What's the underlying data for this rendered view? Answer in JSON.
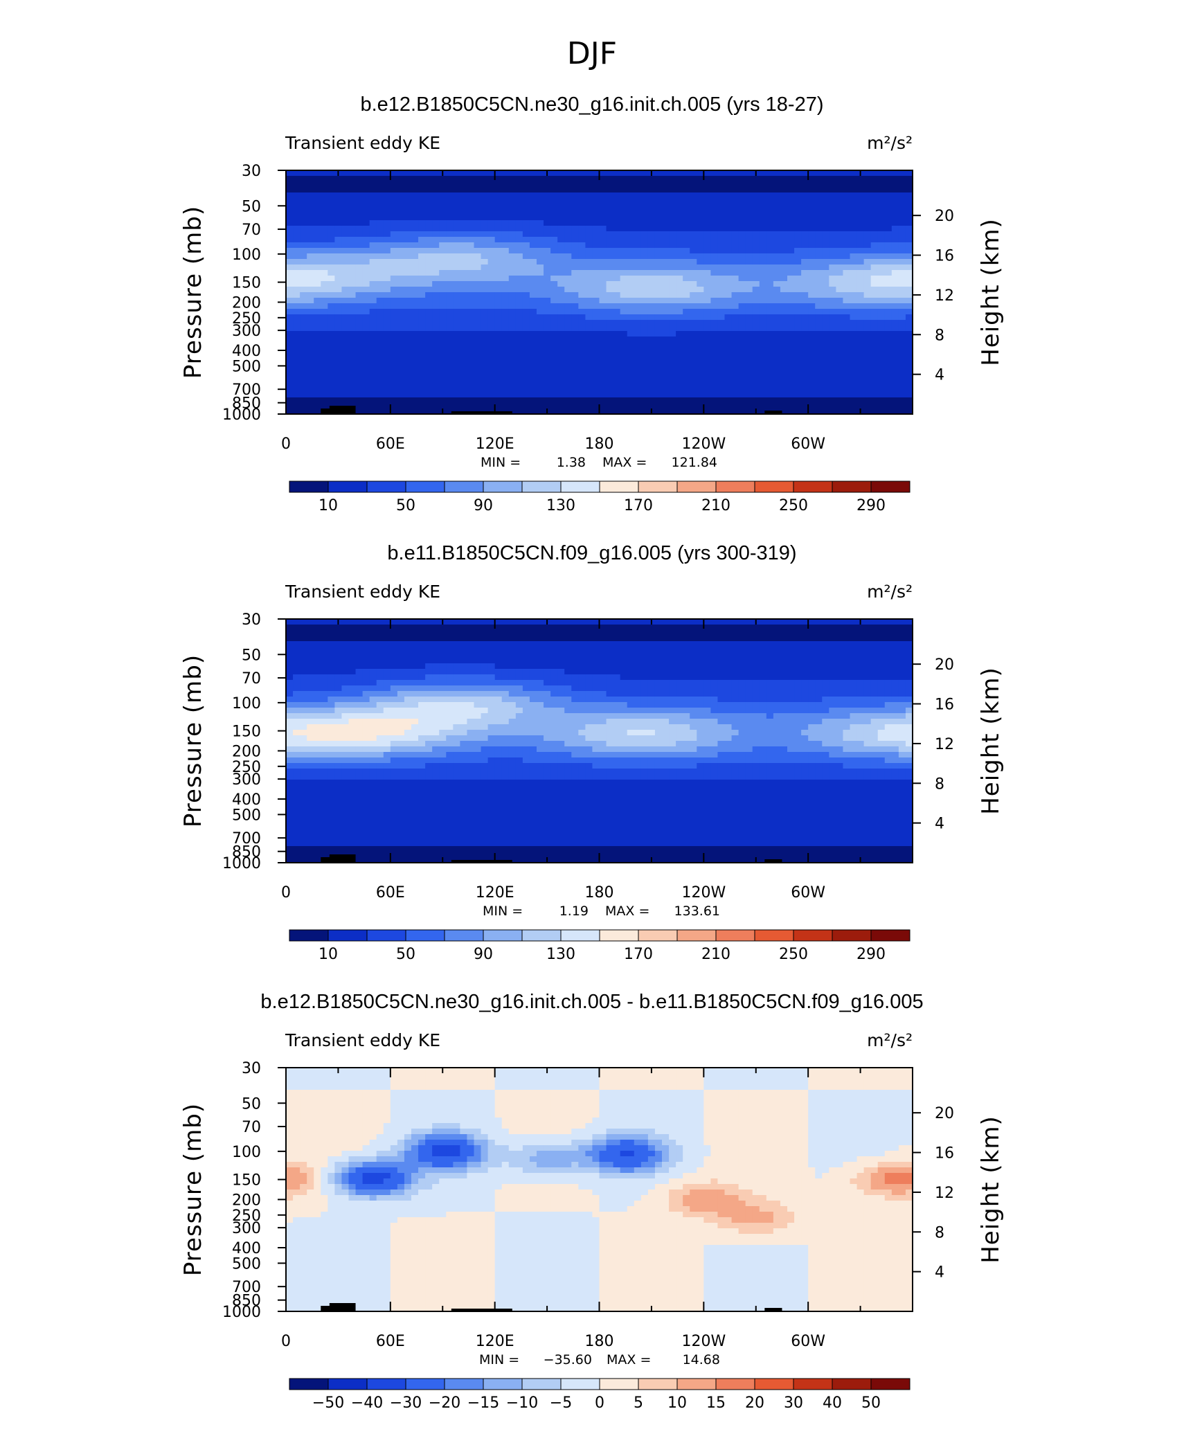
{
  "figure": {
    "title": "DJF"
  },
  "colors": {
    "abs_scale": [
      "#04147a",
      "#0c2ec6",
      "#1d48e0",
      "#3366ee",
      "#5a8af0",
      "#8ab0f2",
      "#b2cdf4",
      "#d6e6fa",
      "#fbeadb",
      "#f9ccb3",
      "#f4a787",
      "#ee7e5c",
      "#e65a33",
      "#c43317",
      "#9c1c0c",
      "#7a0a08"
    ],
    "diff_scale": [
      "#04147a",
      "#0c2ec6",
      "#1d48e0",
      "#3366ee",
      "#5a8af0",
      "#8ab0f2",
      "#b2cdf4",
      "#d6e6fa",
      "#fbeadb",
      "#f9ccb3",
      "#f4a787",
      "#ee7e5c",
      "#e65a33",
      "#c43317",
      "#9c1c0c",
      "#7a0a08"
    ],
    "topography": "#000000"
  },
  "chart_data": [
    {
      "type": "heatmap",
      "title": "b.e12.B1850C5CN.ne30_g16.init.ch.005 (yrs 18-27)",
      "left_label": "Transient eddy KE",
      "units": "m²/s²",
      "xlabel": "",
      "ylabel": "Pressure  (mb)",
      "ylabel_right": "Height  (km)",
      "x_ticks": [
        "0",
        "60E",
        "120E",
        "180",
        "120W",
        "60W"
      ],
      "y_ticks": [
        "30",
        "50",
        "70",
        "100",
        "150",
        "200",
        "250",
        "300",
        "400",
        "500",
        "700",
        "850",
        "1000"
      ],
      "y_right_ticks": [
        "20",
        "16",
        "12",
        "8",
        "4"
      ],
      "min_label": "MIN =",
      "min_value": "1.38",
      "max_label": "MAX =",
      "max_value": "121.84",
      "colorbar_labels": [
        "10",
        "50",
        "90",
        "130",
        "170",
        "210",
        "250",
        "290"
      ],
      "colorbar_levels": [
        10,
        30,
        50,
        70,
        90,
        110,
        130,
        150,
        170,
        190,
        210,
        230,
        250,
        270,
        290
      ],
      "field_max": 121.84,
      "jets": [
        {
          "lon": 20,
          "logp": 2.13,
          "peak": 105
        },
        {
          "lon": 100,
          "logp": 2.02,
          "peak": 118
        },
        {
          "lon": 210,
          "logp": 2.22,
          "peak": 122
        },
        {
          "lon": 335,
          "logp": 2.2,
          "peak": 105
        }
      ]
    },
    {
      "type": "heatmap",
      "title": "b.e11.B1850C5CN.f09_g16.005 (yrs 300-319)",
      "left_label": "Transient eddy KE",
      "units": "m²/s²",
      "xlabel": "",
      "ylabel": "Pressure  (mb)",
      "ylabel_right": "Height  (km)",
      "x_ticks": [
        "0",
        "60E",
        "120E",
        "180",
        "120W",
        "60W"
      ],
      "y_ticks": [
        "30",
        "50",
        "70",
        "100",
        "150",
        "200",
        "250",
        "300",
        "400",
        "500",
        "700",
        "850",
        "1000"
      ],
      "y_right_ticks": [
        "20",
        "16",
        "12",
        "8",
        "4"
      ],
      "min_label": "MIN =",
      "min_value": "1.19",
      "max_label": "MAX =",
      "max_value": "133.61",
      "colorbar_labels": [
        "10",
        "50",
        "90",
        "130",
        "170",
        "210",
        "250",
        "290"
      ],
      "colorbar_levels": [
        10,
        30,
        50,
        70,
        90,
        110,
        130,
        150,
        170,
        190,
        210,
        230,
        250,
        270,
        290
      ],
      "field_max": 133.61,
      "jets": [
        {
          "lon": 48,
          "logp": 2.19,
          "peak": 134
        },
        {
          "lon": 100,
          "logp": 2.01,
          "peak": 132
        },
        {
          "lon": 205,
          "logp": 2.2,
          "peak": 128
        },
        {
          "lon": 345,
          "logp": 2.2,
          "peak": 112
        }
      ]
    },
    {
      "type": "heatmap",
      "title": "b.e12.B1850C5CN.ne30_g16.init.ch.005 - b.e11.B1850C5CN.f09_g16.005",
      "left_label": "Transient eddy KE",
      "units": "m²/s²",
      "xlabel": "",
      "ylabel": "Pressure  (mb)",
      "ylabel_right": "Height  (km)",
      "x_ticks": [
        "0",
        "60E",
        "120E",
        "180",
        "120W",
        "60W"
      ],
      "y_ticks": [
        "30",
        "50",
        "70",
        "100",
        "150",
        "200",
        "250",
        "300",
        "400",
        "500",
        "700",
        "850",
        "1000"
      ],
      "y_right_ticks": [
        "20",
        "16",
        "12",
        "8",
        "4"
      ],
      "min_label": "MIN =",
      "min_value": "−35.60",
      "max_label": "MAX =",
      "max_value": "14.68",
      "colorbar_labels": [
        "−50",
        "−40",
        "−30",
        "−20",
        "−15",
        "−10",
        "−5",
        "0",
        "5",
        "10",
        "15",
        "20",
        "30",
        "40",
        "50"
      ],
      "colorbar_levels": [
        -50,
        -40,
        -30,
        -20,
        -15,
        -10,
        -5,
        0,
        5,
        10,
        15,
        20,
        30,
        40,
        50
      ],
      "field_min": -35.6,
      "field_max": 14.68,
      "anomalies": [
        {
          "lon": 50,
          "logp": 2.17,
          "amp": -35
        },
        {
          "lon": 92,
          "logp": 2.0,
          "amp": -33
        },
        {
          "lon": 195,
          "logp": 2.02,
          "amp": -30
        },
        {
          "lon": 150,
          "logp": 2.05,
          "amp": -14
        },
        {
          "lon": 240,
          "logp": 2.3,
          "amp": 14
        },
        {
          "lon": 270,
          "logp": 2.42,
          "amp": 12
        },
        {
          "lon": 345,
          "logp": 2.18,
          "amp": 13
        },
        {
          "lon": 3,
          "logp": 2.17,
          "amp": 8
        }
      ]
    }
  ]
}
